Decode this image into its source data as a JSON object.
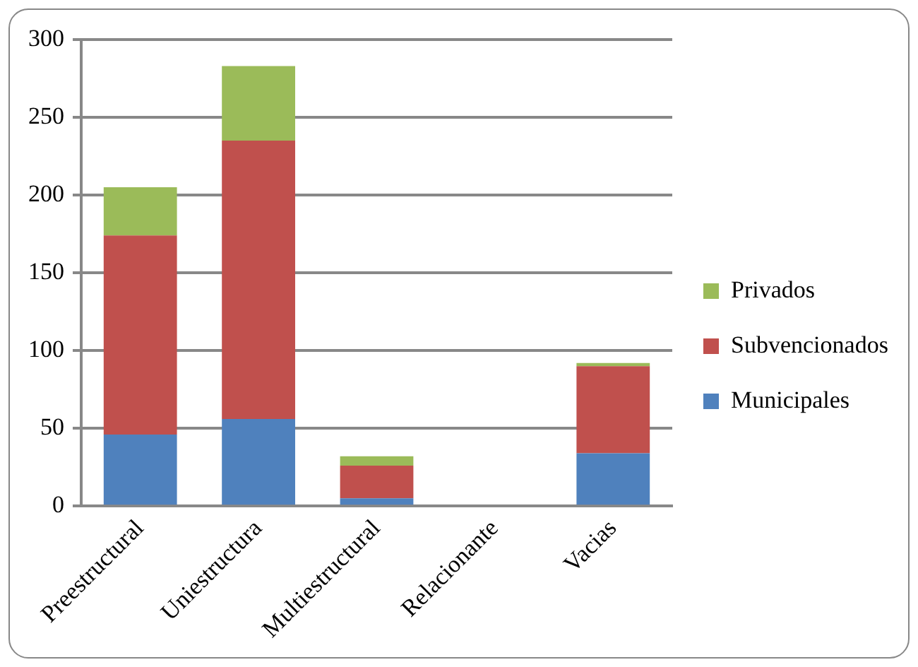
{
  "chart_data": {
    "type": "bar",
    "stacked": true,
    "categories": [
      "Preestructural",
      "Uniestructura",
      "Multiestructural",
      "Relacionante",
      "Vacias"
    ],
    "series": [
      {
        "name": "Municipales",
        "color": "#4f81bd",
        "values": [
          46,
          56,
          5,
          0,
          34
        ]
      },
      {
        "name": "Subvencionados",
        "color": "#c0504d",
        "values": [
          128,
          179,
          21,
          0,
          56
        ]
      },
      {
        "name": "Privados",
        "color": "#9bbb59",
        "values": [
          31,
          48,
          6,
          0,
          2
        ]
      }
    ],
    "ylim": [
      0,
      300
    ],
    "yticks": [
      0,
      50,
      100,
      150,
      200,
      250,
      300
    ],
    "grid": "y",
    "legend": "right"
  }
}
